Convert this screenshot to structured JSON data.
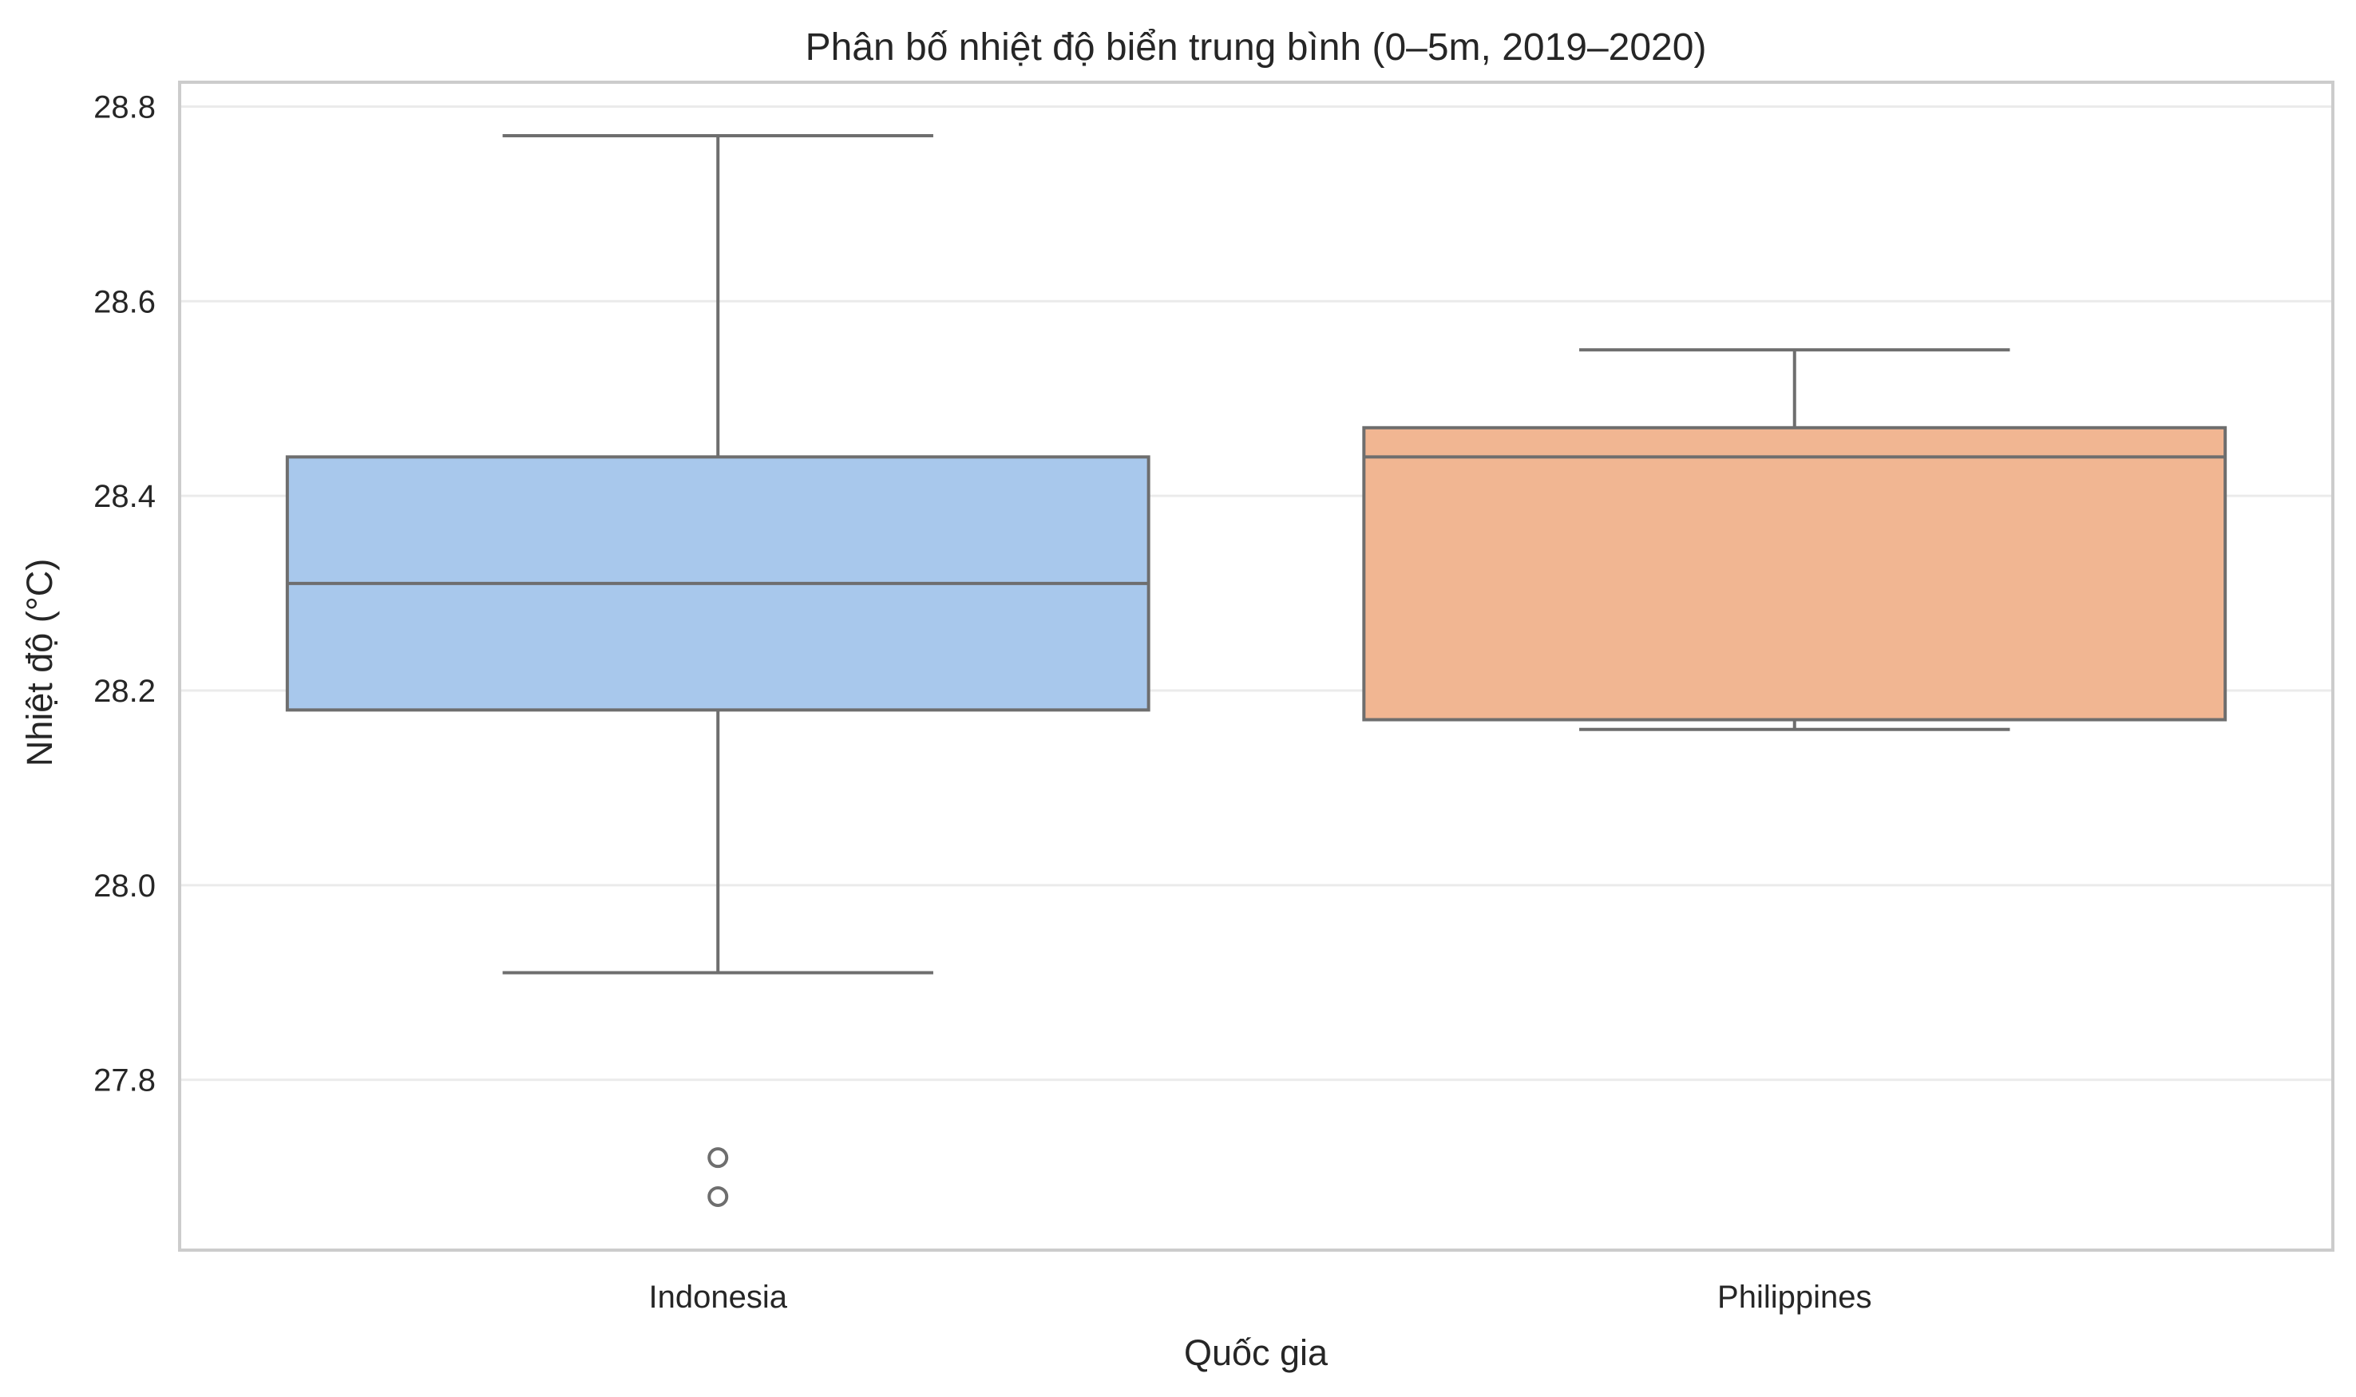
{
  "chart_data": {
    "type": "box",
    "title": "Phân bố nhiệt độ biển trung bình (0–5m, 2019–2020)",
    "xlabel": "Quốc gia",
    "ylabel": "Nhiệt độ (°C)",
    "ylim": [
      27.625,
      28.825
    ],
    "yticks": [
      27.8,
      28.0,
      28.2,
      28.4,
      28.6,
      28.8
    ],
    "grid": true,
    "categories": [
      "Indonesia",
      "Philippines"
    ],
    "series": [
      {
        "category": "Indonesia",
        "color": "#a8c8ec",
        "whisker_low": 27.91,
        "q1": 28.18,
        "median": 28.31,
        "q3": 28.44,
        "whisker_high": 28.77,
        "outliers": [
          27.72,
          27.68
        ]
      },
      {
        "category": "Philippines",
        "color": "#f1b692",
        "whisker_low": 28.16,
        "q1": 28.17,
        "median": 28.44,
        "q3": 28.47,
        "whisker_high": 28.55,
        "outliers": []
      }
    ]
  }
}
